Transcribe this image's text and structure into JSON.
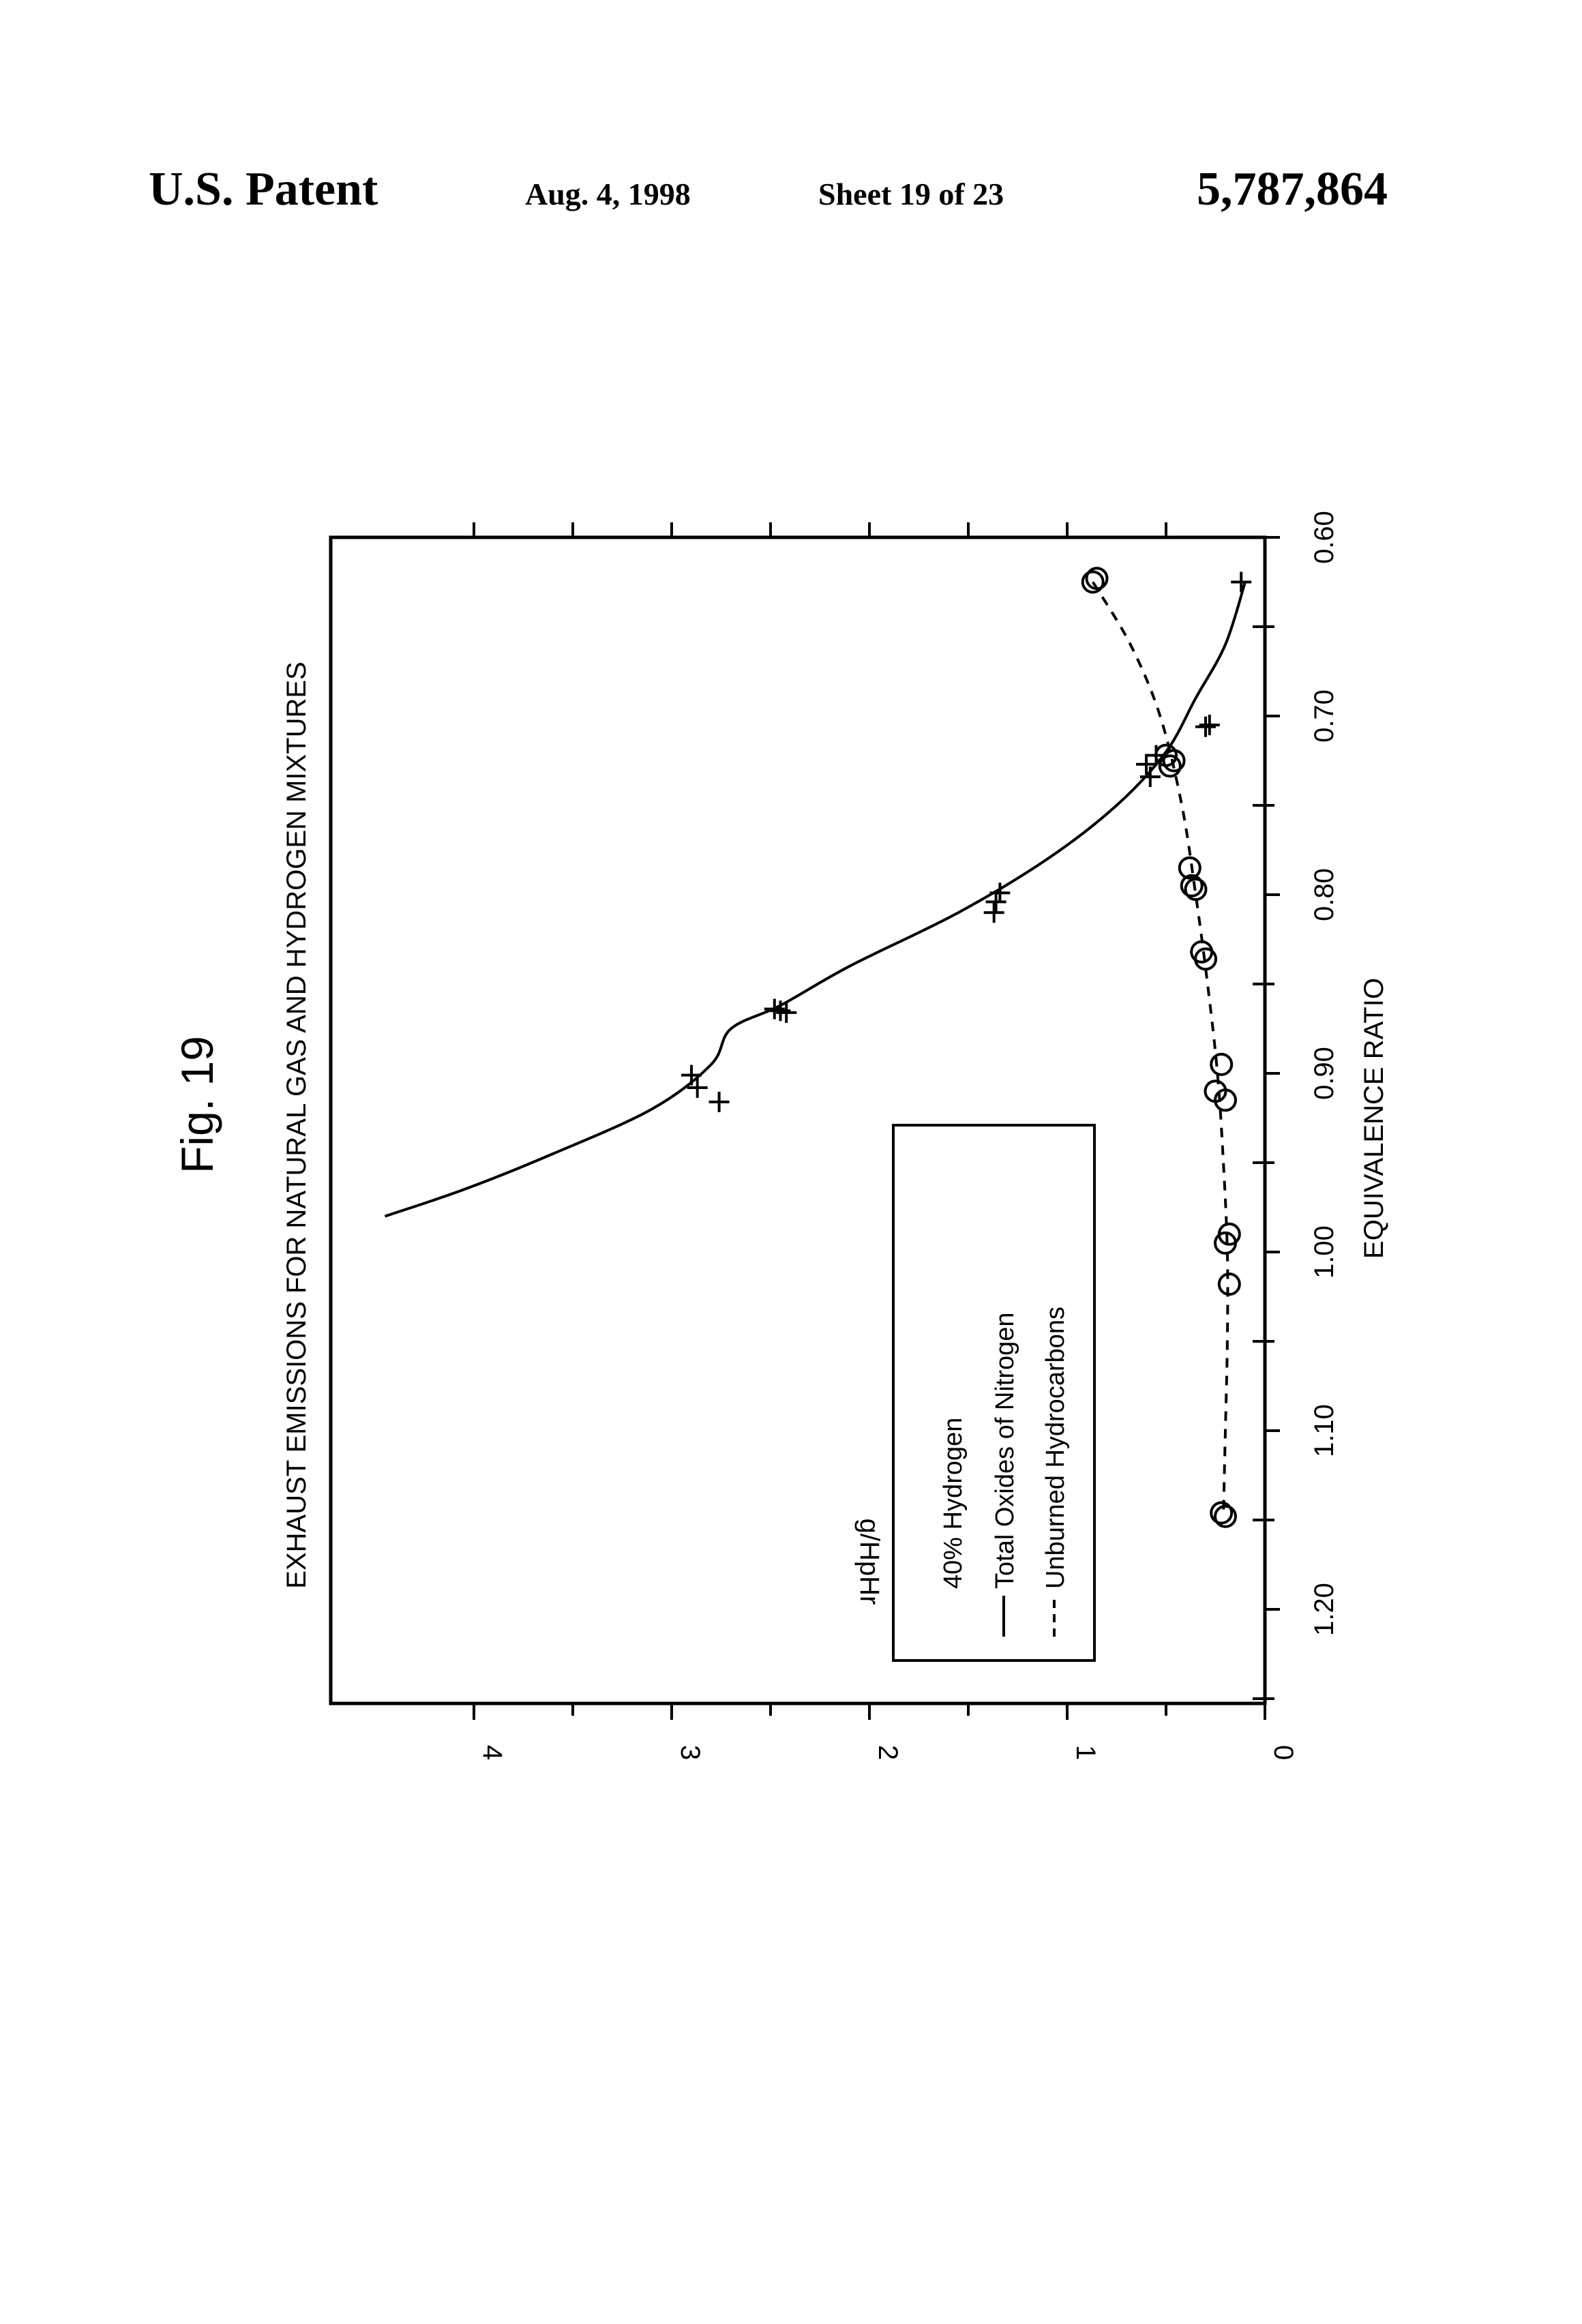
{
  "header": {
    "patent_label": "U.S. Patent",
    "date": "Aug. 4, 1998",
    "sheet": "Sheet 19 of 23",
    "patent_number": "5,787,864"
  },
  "figure": {
    "label": "Fig. 19"
  },
  "chart_data": {
    "type": "scatter",
    "title": "EXHAUST EMISSIONS FOR NATURAL GAS AND HYDROGEN MIXTURES",
    "xlabel": "EQUIVALENCE RATIO",
    "ylabel": "g/HpHr",
    "x_reversed": true,
    "xlim": [
      0.6,
      1.26
    ],
    "ylim": [
      0,
      4.5
    ],
    "x_ticks": [
      "0.60",
      "0.70",
      "0.80",
      "0.90",
      "1.00",
      "1.10",
      "1.20"
    ],
    "y_ticks": [
      "0",
      "1",
      "2",
      "3",
      "4"
    ],
    "legend": {
      "title": "40% Hydrogen",
      "entries": [
        {
          "label": "Total Oxides of Nitrogen",
          "line": "solid"
        },
        {
          "label": "Unburned Hydrocarbons",
          "line": "dashed"
        }
      ]
    },
    "series": [
      {
        "name": "Total Oxides of Nitrogen",
        "marker": "plus",
        "line": "solid",
        "points": [
          {
            "x": 0.908,
            "y": 2.87
          },
          {
            "x": 0.901,
            "y": 2.9
          },
          {
            "x": 0.916,
            "y": 2.76
          },
          {
            "x": 0.865,
            "y": 2.45
          },
          {
            "x": 0.866,
            "y": 2.42
          },
          {
            "x": 0.864,
            "y": 2.48
          },
          {
            "x": 0.804,
            "y": 1.36
          },
          {
            "x": 0.799,
            "y": 1.34
          },
          {
            "x": 0.81,
            "y": 1.37
          },
          {
            "x": 0.734,
            "y": 0.58
          },
          {
            "x": 0.727,
            "y": 0.6
          },
          {
            "x": 0.722,
            "y": 0.55
          },
          {
            "x": 0.706,
            "y": 0.3
          },
          {
            "x": 0.705,
            "y": 0.28
          },
          {
            "x": 0.625,
            "y": 0.12
          }
        ],
        "curve": [
          {
            "x": 0.98,
            "y": 4.45
          },
          {
            "x": 0.965,
            "y": 4.05
          },
          {
            "x": 0.945,
            "y": 3.6
          },
          {
            "x": 0.92,
            "y": 3.1
          },
          {
            "x": 0.895,
            "y": 2.8
          },
          {
            "x": 0.875,
            "y": 2.7
          },
          {
            "x": 0.862,
            "y": 2.45
          },
          {
            "x": 0.84,
            "y": 2.1
          },
          {
            "x": 0.81,
            "y": 1.55
          },
          {
            "x": 0.78,
            "y": 1.1
          },
          {
            "x": 0.75,
            "y": 0.75
          },
          {
            "x": 0.72,
            "y": 0.5
          },
          {
            "x": 0.69,
            "y": 0.35
          },
          {
            "x": 0.66,
            "y": 0.2
          },
          {
            "x": 0.625,
            "y": 0.1
          }
        ]
      },
      {
        "name": "Unburned Hydrocarbons",
        "marker": "circle",
        "line": "dashed",
        "points": [
          {
            "x": 0.625,
            "y": 0.87
          },
          {
            "x": 0.623,
            "y": 0.85
          },
          {
            "x": 0.722,
            "y": 0.5
          },
          {
            "x": 0.725,
            "y": 0.46
          },
          {
            "x": 0.728,
            "y": 0.48
          },
          {
            "x": 0.785,
            "y": 0.38
          },
          {
            "x": 0.795,
            "y": 0.37
          },
          {
            "x": 0.797,
            "y": 0.35
          },
          {
            "x": 0.832,
            "y": 0.32
          },
          {
            "x": 0.836,
            "y": 0.3
          },
          {
            "x": 0.895,
            "y": 0.22
          },
          {
            "x": 0.91,
            "y": 0.25
          },
          {
            "x": 0.915,
            "y": 0.2
          },
          {
            "x": 0.99,
            "y": 0.18
          },
          {
            "x": 0.995,
            "y": 0.2
          },
          {
            "x": 1.018,
            "y": 0.18
          },
          {
            "x": 1.146,
            "y": 0.22
          },
          {
            "x": 1.148,
            "y": 0.2
          }
        ],
        "curve": [
          {
            "x": 0.625,
            "y": 0.87
          },
          {
            "x": 0.66,
            "y": 0.68
          },
          {
            "x": 0.7,
            "y": 0.53
          },
          {
            "x": 0.75,
            "y": 0.42
          },
          {
            "x": 0.8,
            "y": 0.35
          },
          {
            "x": 0.85,
            "y": 0.29
          },
          {
            "x": 0.9,
            "y": 0.24
          },
          {
            "x": 0.95,
            "y": 0.21
          },
          {
            "x": 1.0,
            "y": 0.19
          },
          {
            "x": 1.05,
            "y": 0.19
          },
          {
            "x": 1.1,
            "y": 0.2
          },
          {
            "x": 1.148,
            "y": 0.21
          }
        ]
      }
    ]
  }
}
